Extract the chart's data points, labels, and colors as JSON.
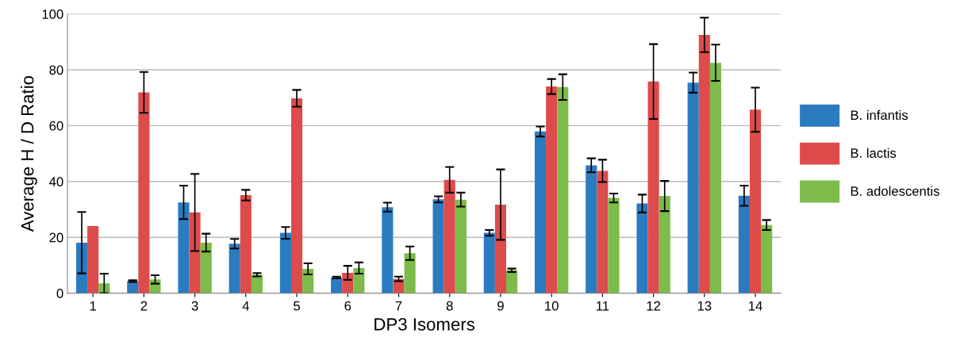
{
  "chart_data": {
    "type": "bar",
    "xlabel": "DP3 Isomers",
    "ylabel": "Average H / D Ratio",
    "categories": [
      "1",
      "2",
      "3",
      "4",
      "5",
      "6",
      "7",
      "8",
      "9",
      "10",
      "11",
      "12",
      "13",
      "14"
    ],
    "series": [
      {
        "name": "B. infantis",
        "color": "#2b7bc0",
        "values": [
          18.1,
          4.3,
          32.5,
          17.7,
          21.6,
          5.6,
          30.8,
          33.6,
          21.6,
          57.9,
          45.8,
          32.1,
          75.4,
          34.9
        ],
        "errors": [
          11,
          0.3,
          6,
          1.7,
          2.1,
          0.3,
          1.6,
          1.1,
          1,
          1.8,
          2.5,
          3.2,
          3.6,
          3.6
        ]
      },
      {
        "name": "B. lactis",
        "color": "#dd4b4b",
        "values": [
          24,
          71.9,
          28.9,
          35.1,
          69.8,
          7.3,
          5.1,
          40.6,
          31.7,
          74,
          43.8,
          75.8,
          92.5,
          65.7
        ],
        "errors": [
          null,
          7.3,
          13.8,
          1.9,
          3,
          2.5,
          0.8,
          4.6,
          12.6,
          2.7,
          4,
          13.4,
          6.2,
          7.9
        ]
      },
      {
        "name": "B. adolescentis",
        "color": "#7dbb4a",
        "values": [
          3.5,
          4.9,
          18.1,
          6.6,
          8.7,
          9,
          14.3,
          33.5,
          8.2,
          73.8,
          34.1,
          34.8,
          82.5,
          24.4
        ],
        "errors": [
          3.5,
          1.5,
          3.2,
          0.6,
          2,
          2,
          2.4,
          2.5,
          0.6,
          4.6,
          1.6,
          5.4,
          6.5,
          1.8
        ]
      }
    ],
    "ylim": [
      0,
      100
    ],
    "yticks": [
      0,
      20,
      40,
      60,
      80,
      100
    ],
    "grid": "y",
    "legend": "right"
  }
}
